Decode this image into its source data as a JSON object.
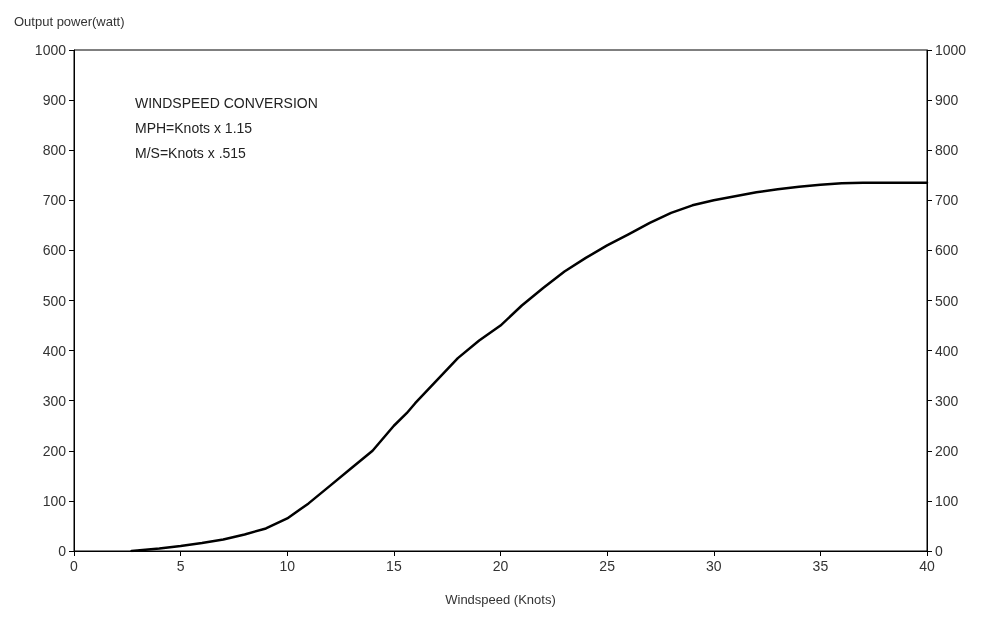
{
  "chart_data": {
    "type": "line",
    "ylabel": "Output power(watt)",
    "xlabel": "Windspeed (Knots)",
    "annotations": [
      "WINDSPEED CONVERSION",
      "MPH=Knots x 1.15",
      "M/S=Knots x .515"
    ],
    "x": [
      2.7,
      4,
      5,
      6,
      7,
      8,
      9,
      10,
      11,
      12,
      13,
      14,
      15,
      15.6,
      16,
      17,
      18,
      19,
      20,
      21,
      22,
      23,
      24,
      25,
      26,
      27,
      28,
      29,
      30,
      31,
      32,
      33,
      34,
      35,
      36,
      37,
      40
    ],
    "series": [
      {
        "color": "#000000",
        "values": [
          0,
          5,
          10,
          16,
          23,
          33,
          45,
          65,
          95,
          130,
          165,
          200,
          250,
          275,
          295,
          340,
          385,
          420,
          450,
          490,
          525,
          558,
          585,
          610,
          632,
          655,
          675,
          690,
          700,
          708,
          716,
          722,
          727,
          731,
          734,
          735,
          735
        ]
      }
    ],
    "xlim": [
      0,
      40
    ],
    "xticks": [
      0,
      5,
      10,
      15,
      20,
      25,
      30,
      35,
      40
    ],
    "ylim": [
      0,
      1000
    ],
    "yticks": [
      0,
      100,
      200,
      300,
      400,
      500,
      600,
      700,
      800,
      900,
      1000
    ],
    "y2lim": [
      0,
      1000
    ],
    "y2ticks": [
      0,
      100,
      200,
      300,
      400,
      500,
      600,
      700,
      800,
      900,
      1000
    ],
    "grid": false,
    "marker": "none",
    "line_style": "solid"
  }
}
